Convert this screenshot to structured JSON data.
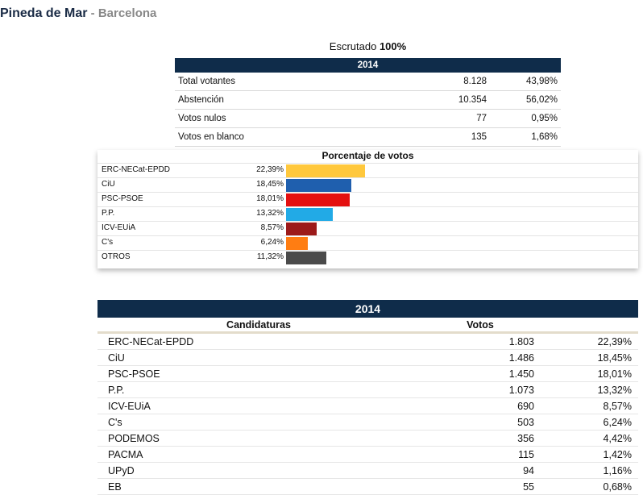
{
  "header": {
    "municipality": "Pineda de Mar",
    "separator": " - ",
    "province": "Barcelona"
  },
  "scrutiny": {
    "label": "Escrutado ",
    "value": "100%"
  },
  "summary": {
    "year": "2014",
    "rows": [
      {
        "label": "Total votantes",
        "count": "8.128",
        "pct": "43,98%"
      },
      {
        "label": "Abstención",
        "count": "10.354",
        "pct": "56,02%"
      },
      {
        "label": "Votos nulos",
        "count": "77",
        "pct": "0,95%"
      },
      {
        "label": "Votos en blanco",
        "count": "135",
        "pct": "1,68%"
      }
    ]
  },
  "chart_data": {
    "type": "bar",
    "orientation": "horizontal",
    "title": "Porcentaje de votos",
    "categories": [
      "ERC-NECat-EPDD",
      "CiU",
      "PSC-PSOE",
      "P.P.",
      "ICV-EUiA",
      "C's",
      "OTROS"
    ],
    "labels": [
      "22,39%",
      "18,45%",
      "18,01%",
      "13,32%",
      "8,57%",
      "6,24%",
      "11,32%"
    ],
    "values": [
      22.39,
      18.45,
      18.01,
      13.32,
      8.57,
      6.24,
      11.32
    ],
    "colors": [
      "#ffc83d",
      "#1f5fae",
      "#e41010",
      "#22aae6",
      "#9c1a1a",
      "#ff7d12",
      "#4a4a4a"
    ],
    "xlim": [
      0,
      100
    ]
  },
  "results": {
    "year": "2014",
    "col_party": "Candidaturas",
    "col_votes": "Votos",
    "rows": [
      {
        "party": "ERC-NECat-EPDD",
        "votes": "1.803",
        "pct": "22,39%"
      },
      {
        "party": "CiU",
        "votes": "1.486",
        "pct": "18,45%"
      },
      {
        "party": "PSC-PSOE",
        "votes": "1.450",
        "pct": "18,01%"
      },
      {
        "party": "P.P.",
        "votes": "1.073",
        "pct": "13,32%"
      },
      {
        "party": "ICV-EUiA",
        "votes": "690",
        "pct": "8,57%"
      },
      {
        "party": "C's",
        "votes": "503",
        "pct": "6,24%"
      },
      {
        "party": "PODEMOS",
        "votes": "356",
        "pct": "4,42%"
      },
      {
        "party": "PACMA",
        "votes": "115",
        "pct": "1,42%"
      },
      {
        "party": "UPyD",
        "votes": "94",
        "pct": "1,16%"
      },
      {
        "party": "EB",
        "votes": "55",
        "pct": "0,68%"
      }
    ]
  }
}
